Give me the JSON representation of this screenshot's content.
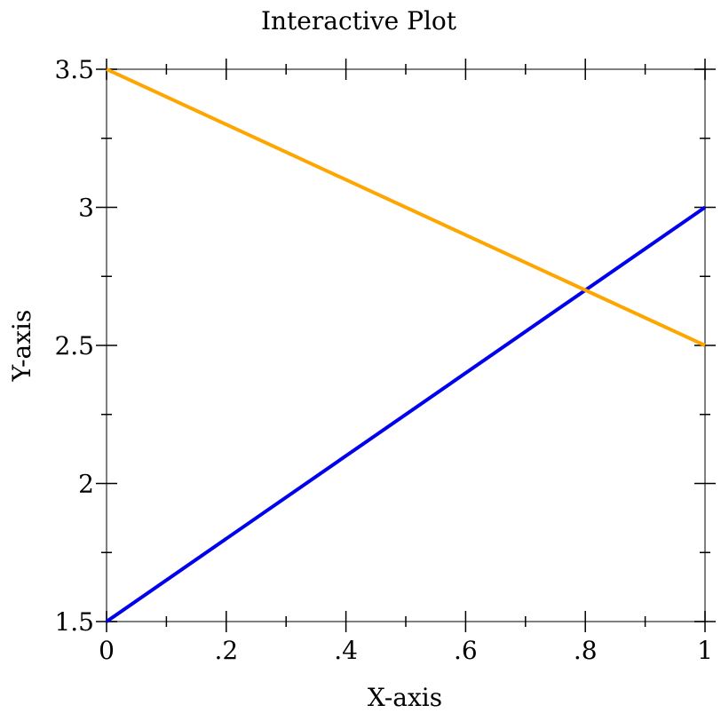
{
  "chart_data": {
    "type": "line",
    "title": "Interactive Plot",
    "xlabel": "X-axis",
    "ylabel": "Y-axis",
    "xlim": [
      0,
      1
    ],
    "ylim": [
      1.5,
      3.5
    ],
    "grid": false,
    "x_ticks": [
      {
        "value": 0,
        "label": "0"
      },
      {
        "value": 0.2,
        "label": ".2"
      },
      {
        "value": 0.4,
        "label": ".4"
      },
      {
        "value": 0.6,
        "label": ".6"
      },
      {
        "value": 0.8,
        "label": ".8"
      },
      {
        "value": 1,
        "label": "1"
      }
    ],
    "x_minor_ticks": [
      0.1,
      0.3,
      0.5,
      0.7,
      0.9
    ],
    "y_ticks": [
      {
        "value": 1.5,
        "label": "1.5"
      },
      {
        "value": 2,
        "label": "2"
      },
      {
        "value": 2.5,
        "label": "2.5"
      },
      {
        "value": 3,
        "label": "3"
      },
      {
        "value": 3.5,
        "label": "3.5"
      }
    ],
    "y_minor_ticks": [
      1.75,
      2.25,
      2.75,
      3.25
    ],
    "series": [
      {
        "color": "#0000ee",
        "points": [
          [
            0,
            1.5
          ],
          [
            1,
            3.0
          ]
        ]
      },
      {
        "color": "#ffa500",
        "points": [
          [
            0,
            3.5
          ],
          [
            1,
            2.5
          ]
        ]
      }
    ]
  }
}
